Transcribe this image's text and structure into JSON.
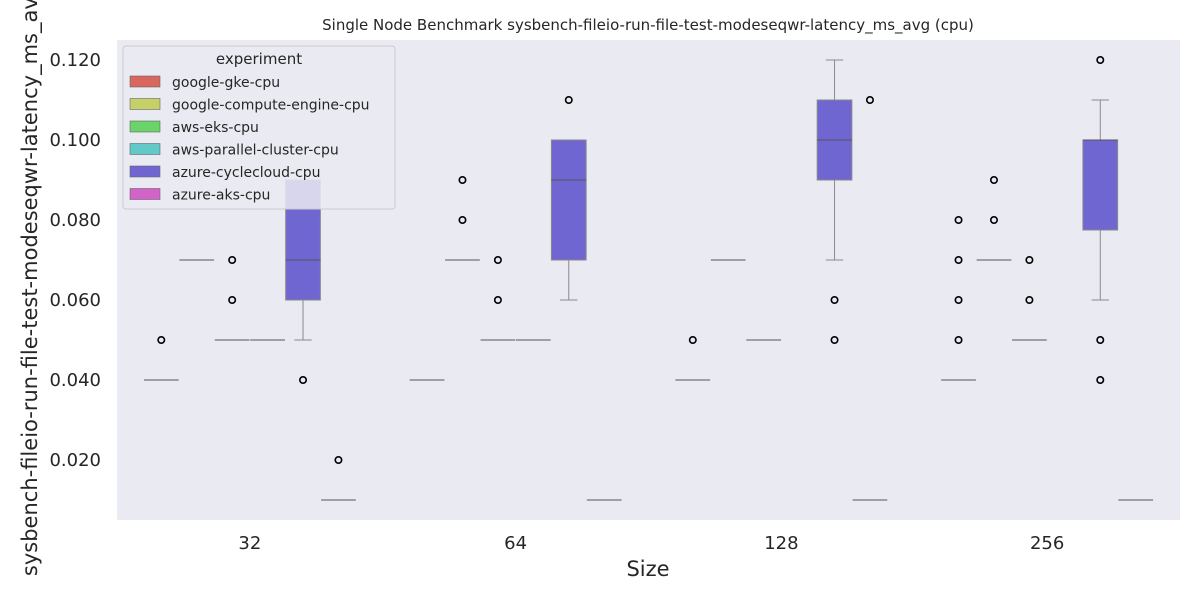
{
  "chart_data": {
    "type": "box",
    "title": "Single Node Benchmark sysbench-fileio-run-file-test-modeseqwr-latency_ms_avg (cpu)",
    "xlabel": "Size",
    "ylabel": "sysbench-fileio-run-file-test-modeseqwr-latency_ms_avg",
    "categories": [
      "32",
      "64",
      "128",
      "256"
    ],
    "ylim": [
      0.005,
      0.125
    ],
    "yticks": [
      0.02,
      0.04,
      0.06,
      0.08,
      0.1,
      0.12
    ],
    "ytick_labels": [
      "0.020",
      "0.040",
      "0.060",
      "0.080",
      "0.100",
      "0.120"
    ],
    "grid": false,
    "background": "#eaeaf2",
    "legend": {
      "title": "experiment",
      "placement": "top-left"
    },
    "series": [
      {
        "name": "google-gke-cpu",
        "color": "#d9675e",
        "boxes": [
          {
            "category": "32",
            "whislo": 0.04,
            "q1": 0.04,
            "med": 0.04,
            "q3": 0.04,
            "whishi": 0.04,
            "fliers": [
              0.05
            ]
          },
          {
            "category": "64",
            "whislo": 0.04,
            "q1": 0.04,
            "med": 0.04,
            "q3": 0.04,
            "whishi": 0.04,
            "fliers": []
          },
          {
            "category": "128",
            "whislo": 0.04,
            "q1": 0.04,
            "med": 0.04,
            "q3": 0.04,
            "whishi": 0.04,
            "fliers": [
              0.05
            ]
          },
          {
            "category": "256",
            "whislo": 0.04,
            "q1": 0.04,
            "med": 0.04,
            "q3": 0.04,
            "whishi": 0.04,
            "fliers": [
              0.05,
              0.06,
              0.07,
              0.08
            ]
          }
        ]
      },
      {
        "name": "google-compute-engine-cpu",
        "color": "#c6d068",
        "boxes": [
          {
            "category": "32",
            "whislo": 0.07,
            "q1": 0.07,
            "med": 0.07,
            "q3": 0.07,
            "whishi": 0.07,
            "fliers": []
          },
          {
            "category": "64",
            "whislo": 0.07,
            "q1": 0.07,
            "med": 0.07,
            "q3": 0.07,
            "whishi": 0.07,
            "fliers": [
              0.08,
              0.09
            ]
          },
          {
            "category": "128",
            "whislo": 0.07,
            "q1": 0.07,
            "med": 0.07,
            "q3": 0.07,
            "whishi": 0.07,
            "fliers": []
          },
          {
            "category": "256",
            "whislo": 0.07,
            "q1": 0.07,
            "med": 0.07,
            "q3": 0.07,
            "whishi": 0.07,
            "fliers": [
              0.08,
              0.09
            ]
          }
        ]
      },
      {
        "name": "aws-eks-cpu",
        "color": "#6ad36a",
        "boxes": [
          {
            "category": "32",
            "whislo": 0.05,
            "q1": 0.05,
            "med": 0.05,
            "q3": 0.05,
            "whishi": 0.05,
            "fliers": [
              0.06,
              0.07
            ]
          },
          {
            "category": "64",
            "whislo": 0.05,
            "q1": 0.05,
            "med": 0.05,
            "q3": 0.05,
            "whishi": 0.05,
            "fliers": [
              0.06,
              0.07
            ]
          },
          {
            "category": "128",
            "whislo": 0.05,
            "q1": 0.05,
            "med": 0.05,
            "q3": 0.05,
            "whishi": 0.05,
            "fliers": []
          },
          {
            "category": "256",
            "whislo": 0.05,
            "q1": 0.05,
            "med": 0.05,
            "q3": 0.05,
            "whishi": 0.05,
            "fliers": [
              0.06,
              0.07
            ]
          }
        ]
      },
      {
        "name": "aws-parallel-cluster-cpu",
        "color": "#62c9c9",
        "boxes": [
          {
            "category": "32",
            "whislo": 0.05,
            "q1": 0.05,
            "med": 0.05,
            "q3": 0.05,
            "whishi": 0.05,
            "fliers": []
          },
          {
            "category": "64",
            "whislo": 0.05,
            "q1": 0.05,
            "med": 0.05,
            "q3": 0.05,
            "whishi": 0.05,
            "fliers": []
          }
        ]
      },
      {
        "name": "azure-cyclecloud-cpu",
        "color": "#6f66d1",
        "boxes": [
          {
            "category": "32",
            "whislo": 0.05,
            "q1": 0.06,
            "med": 0.07,
            "q3": 0.09,
            "whishi": 0.09,
            "fliers": [
              0.04
            ]
          },
          {
            "category": "64",
            "whislo": 0.06,
            "q1": 0.07,
            "med": 0.09,
            "q3": 0.1,
            "whishi": 0.1,
            "fliers": [
              0.11
            ]
          },
          {
            "category": "128",
            "whislo": 0.07,
            "q1": 0.09,
            "med": 0.1,
            "q3": 0.11,
            "whishi": 0.12,
            "fliers": [
              0.05,
              0.06
            ]
          },
          {
            "category": "256",
            "whislo": 0.06,
            "q1": 0.0775,
            "med": 0.1,
            "q3": 0.1,
            "whishi": 0.11,
            "fliers": [
              0.04,
              0.05,
              0.12
            ]
          }
        ]
      },
      {
        "name": "azure-aks-cpu",
        "color": "#d362c9",
        "boxes": [
          {
            "category": "32",
            "whislo": 0.01,
            "q1": 0.01,
            "med": 0.01,
            "q3": 0.01,
            "whishi": 0.01,
            "fliers": [
              0.02
            ]
          },
          {
            "category": "64",
            "whislo": 0.01,
            "q1": 0.01,
            "med": 0.01,
            "q3": 0.01,
            "whishi": 0.01,
            "fliers": []
          },
          {
            "category": "128",
            "whislo": 0.01,
            "q1": 0.01,
            "med": 0.01,
            "q3": 0.01,
            "whishi": 0.01,
            "fliers": [
              0.11
            ]
          },
          {
            "category": "256",
            "whislo": 0.01,
            "q1": 0.01,
            "med": 0.01,
            "q3": 0.01,
            "whishi": 0.01,
            "fliers": []
          }
        ]
      }
    ]
  }
}
